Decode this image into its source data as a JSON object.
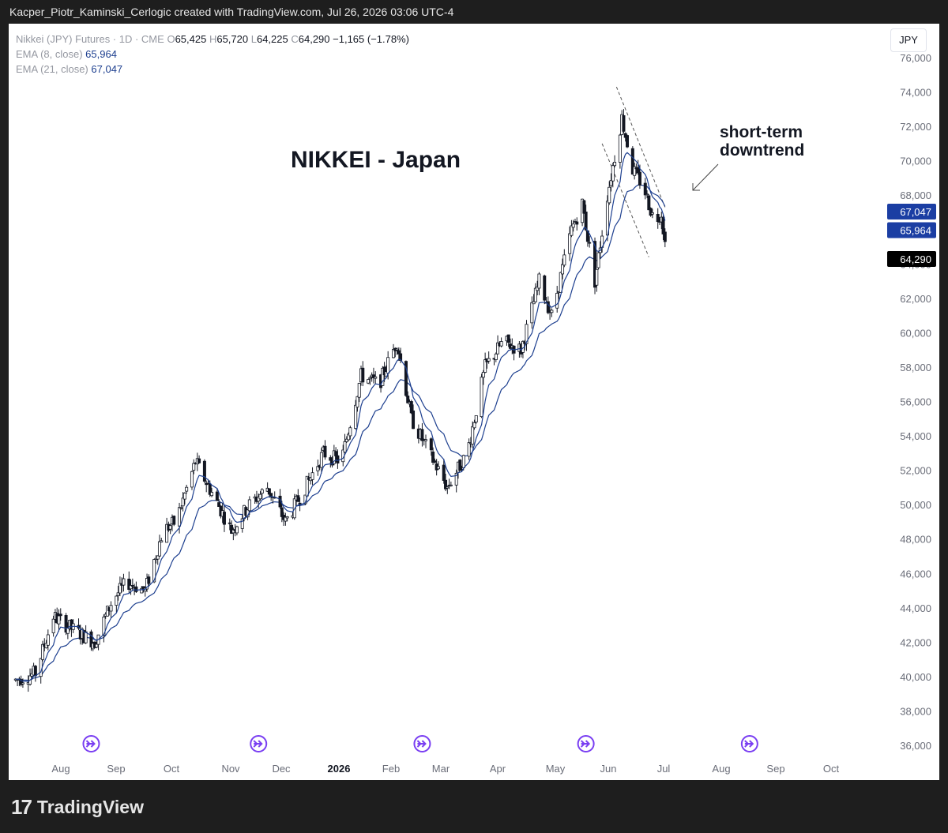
{
  "header": {
    "caption": "Kacper_Piotr_Kaminski_Cerlogic created with TradingView.com, Jul 26, 2026 03:06 UTC-4"
  },
  "legend": {
    "symbol": "Nikkei (JPY) Futures · 1D · CME",
    "o_label": "O",
    "o_value": "65,425",
    "h_label": "H",
    "h_value": "65,720",
    "l_label": "L",
    "l_value": "64,225",
    "c_label": "C",
    "c_value": "64,290",
    "change": "−1,165 (−1.78%)",
    "ema8_label": "EMA (8, close)",
    "ema8_value": "65,964",
    "ema21_label": "EMA (21, close)",
    "ema21_value": "67,047"
  },
  "currency_button": "JPY",
  "annotations": {
    "title": "NIKKEI - Japan",
    "note_line1": "short-term",
    "note_line2": "downtrend"
  },
  "footer": {
    "logo": "17",
    "brand": "TradingView"
  },
  "colors": {
    "candle_up": "#ffffff",
    "candle_down": "#131722",
    "wick": "#131722",
    "ema8": "#1d3f8f",
    "ema21": "#1d3f8f",
    "tag_ema": "#1b3ea3",
    "tag_price": "#000000",
    "event_icon": "#7a3ff2"
  },
  "chart_data": {
    "type": "candlestick",
    "x_ticks": [
      "Aug",
      "Sep",
      "Oct",
      "Nov",
      "Dec",
      "2026",
      "Feb",
      "Mar",
      "Apr",
      "May",
      "Jun",
      "Jul",
      "Aug",
      "Sep",
      "Oct"
    ],
    "y_ticks": [
      "76,000",
      "74,000",
      "72,000",
      "70,000",
      "68,000",
      "66,000",
      "64,000",
      "62,000",
      "60,000",
      "58,000",
      "56,000",
      "54,000",
      "52,000",
      "50,000",
      "48,000",
      "46,000",
      "44,000",
      "42,000",
      "40,000",
      "38,000",
      "36,000"
    ],
    "y_range": [
      35000,
      77000
    ],
    "price_path": [
      [
        "2025-07-28",
        39800
      ],
      [
        "2025-08-08",
        40200
      ],
      [
        "2025-08-18",
        43500
      ],
      [
        "2025-08-28",
        42800
      ],
      [
        "2025-09-10",
        42000
      ],
      [
        "2025-09-20",
        44500
      ],
      [
        "2025-09-28",
        45500
      ],
      [
        "2025-10-08",
        45000
      ],
      [
        "2025-10-18",
        48500
      ],
      [
        "2025-10-25",
        49000
      ],
      [
        "2025-11-05",
        52500
      ],
      [
        "2025-11-15",
        50500
      ],
      [
        "2025-11-25",
        48500
      ],
      [
        "2025-12-05",
        50000
      ],
      [
        "2025-12-15",
        51000
      ],
      [
        "2025-12-25",
        49000
      ],
      [
        "2026-01-05",
        51000
      ],
      [
        "2026-01-15",
        53000
      ],
      [
        "2026-01-25",
        52500
      ],
      [
        "2026-02-05",
        57500
      ],
      [
        "2026-02-15",
        57000
      ],
      [
        "2026-02-25",
        59500
      ],
      [
        "2026-03-05",
        55000
      ],
      [
        "2026-03-15",
        53000
      ],
      [
        "2026-03-25",
        51000
      ],
      [
        "2026-04-05",
        53000
      ],
      [
        "2026-04-15",
        58000
      ],
      [
        "2026-04-25",
        59500
      ],
      [
        "2026-05-05",
        59000
      ],
      [
        "2026-05-15",
        63000
      ],
      [
        "2026-05-22",
        61000
      ],
      [
        "2026-06-02",
        66000
      ],
      [
        "2026-06-08",
        67500
      ],
      [
        "2026-06-15",
        63000
      ],
      [
        "2026-06-22",
        68000
      ],
      [
        "2026-06-30",
        72500
      ],
      [
        "2026-07-06",
        69500
      ],
      [
        "2026-07-12",
        68500
      ],
      [
        "2026-07-18",
        66500
      ],
      [
        "2026-07-22",
        67000
      ],
      [
        "2026-07-25",
        64290
      ]
    ],
    "ema8_last": 65964,
    "ema21_last": 67047,
    "last_price": 64290,
    "price_tags": [
      "67,047",
      "65,964",
      "64,290"
    ],
    "event_markers": [
      "2025-09-08",
      "2025-12-10",
      "2026-03-11",
      "2026-06-10",
      "2026-09-09"
    ]
  }
}
